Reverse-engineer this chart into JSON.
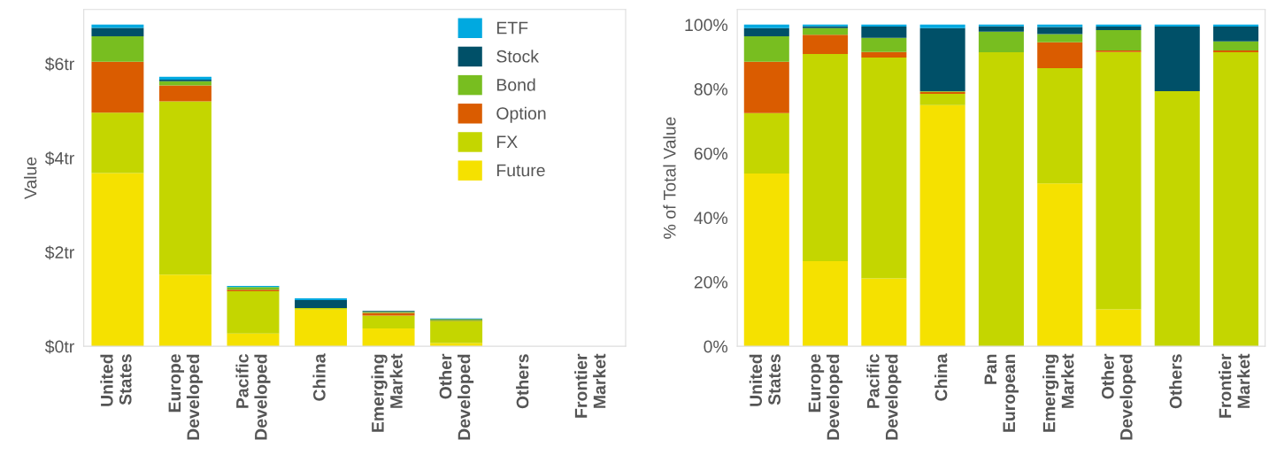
{
  "chart_data": [
    {
      "type": "bar",
      "stacked": true,
      "ylabel": "Value",
      "legend": "top right",
      "categories": [
        "United\nStates",
        "Europe\nDeveloped",
        "Pacific\nDeveloped",
        "China",
        "Emerging\nMarket",
        "Other\nDeveloped",
        "Others",
        "Frontier\nMarket"
      ],
      "ylim": [
        0,
        7.15
      ],
      "yticks": [
        {
          "value": 0,
          "label": "$0tr"
        },
        {
          "value": 2,
          "label": "$2tr"
        },
        {
          "value": 4,
          "label": "$4tr"
        },
        {
          "value": 6,
          "label": "$6tr"
        }
      ],
      "series": [
        {
          "name": "Future",
          "color": "#f5e100",
          "values": [
            3.68,
            1.52,
            0.27,
            0.78,
            0.38,
            0.07,
            0,
            0
          ]
        },
        {
          "name": "FX",
          "color": "#c4d600",
          "values": [
            1.28,
            3.68,
            0.9,
            0.03,
            0.27,
            0.46,
            0,
            0
          ]
        },
        {
          "name": "Option",
          "color": "#da5c00",
          "values": [
            1.08,
            0.34,
            0.03,
            null,
            0.06,
            0.01,
            0,
            0
          ]
        },
        {
          "name": "Bond",
          "color": "#78be20",
          "values": [
            0.54,
            0.09,
            0.06,
            0.0,
            0.02,
            0.03,
            0,
            0
          ]
        },
        {
          "name": "Stock",
          "color": "#005068",
          "values": [
            0.18,
            0.03,
            null,
            0.17,
            0.02,
            0.01,
            0,
            0
          ]
        },
        {
          "name": "ETF",
          "color": "#00a9e0",
          "values": [
            0.07,
            0.06,
            0.02,
            0.04,
            null,
            0.01,
            0,
            0
          ]
        }
      ]
    },
    {
      "type": "bar",
      "stacked": true,
      "ylabel": "% of Total Value",
      "categories": [
        "United\nStates",
        "Europe\nDeveloped",
        "Pacific\nDeveloped",
        "China",
        "Pan\nEuropean",
        "Emerging\nMarket",
        "Other\nDeveloped",
        "Others",
        "Frontier\nMarket"
      ],
      "ylim": [
        0,
        104.7
      ],
      "yticks": [
        {
          "value": 0,
          "label": "0%"
        },
        {
          "value": 20,
          "label": "20%"
        },
        {
          "value": 40,
          "label": "40%"
        },
        {
          "value": 60,
          "label": "60%"
        },
        {
          "value": 80,
          "label": "80%"
        },
        {
          "value": 100,
          "label": "100%"
        }
      ],
      "series": [
        {
          "color": "#f5e100",
          "values": [
            53.7,
            26.5,
            21.1,
            75.0,
            0,
            50.6,
            11.5,
            0,
            0
          ]
        },
        {
          "color": "#c4d600",
          "values": [
            18.8,
            64.4,
            68.7,
            3.5,
            91.4,
            35.9,
            80.0,
            79.3,
            91.4
          ]
        },
        {
          "color": "#da5c00",
          "values": [
            16.0,
            6.0,
            1.7,
            0.6,
            0,
            8.0,
            0.5,
            0,
            0.6
          ]
        },
        {
          "color": "#78be20",
          "values": [
            7.9,
            2.0,
            4.4,
            0.2,
            6.4,
            2.6,
            6.3,
            0,
            2.8
          ]
        },
        {
          "color": "#005068",
          "values": [
            2.5,
            0.6,
            3.5,
            19.6,
            1.7,
            2.2,
            1.1,
            20.1,
            4.6
          ]
        },
        {
          "color": "#00a9e0",
          "values": [
            1.1,
            0.5,
            0.6,
            1.1,
            0.5,
            0.7,
            0.6,
            0.6,
            0.6
          ]
        }
      ]
    }
  ]
}
